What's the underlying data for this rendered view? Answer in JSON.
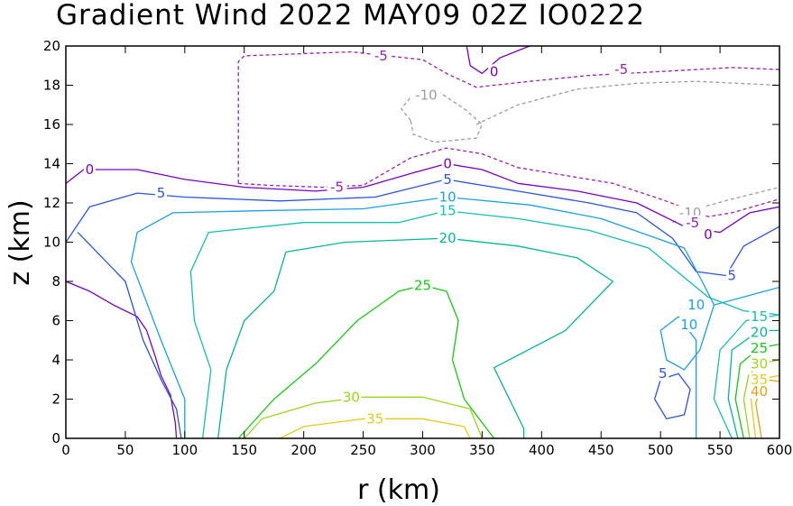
{
  "chart_data": {
    "type": "contour",
    "title": "Gradient Wind 2022 MAY09 02Z   IO0222",
    "xlabel": "r (km)",
    "ylabel": "z (km)",
    "xlim": [
      0,
      600
    ],
    "ylim": [
      0,
      20
    ],
    "x_ticks": [
      "0",
      "50",
      "100",
      "150",
      "200",
      "250",
      "300",
      "350",
      "400",
      "450",
      "500",
      "550",
      "600"
    ],
    "y_ticks": [
      "0",
      "2",
      "4",
      "6",
      "8",
      "10",
      "12",
      "14",
      "16",
      "18",
      "20"
    ],
    "grid": false,
    "contours": [
      {
        "level": -10,
        "label": "-10",
        "color": "#9e9e9e",
        "dashed": true,
        "segments": [
          [
            [
              290,
              16.2
            ],
            [
              282,
              16.8
            ],
            [
              290,
              17.4
            ],
            [
              315,
              17.6
            ],
            [
              335,
              16.8
            ],
            [
              350,
              16.0
            ],
            [
              345,
              15.3
            ],
            [
              310,
              15.1
            ],
            [
              292,
              15.5
            ],
            [
              290,
              16.2
            ]
          ],
          [
            [
              345,
              16.0
            ],
            [
              380,
              17.0
            ],
            [
              430,
              17.8
            ],
            [
              480,
              18.1
            ],
            [
              530,
              18.2
            ],
            [
              600,
              18.0
            ]
          ],
          [
            [
              510,
              11.0
            ],
            [
              530,
              11.7
            ],
            [
              560,
              12.2
            ],
            [
              600,
              12.8
            ]
          ]
        ],
        "labels": [
          {
            "text": "-10",
            "x": 303,
            "y": 17.5
          },
          {
            "text": "-10",
            "x": 525,
            "y": 11.5
          }
        ]
      },
      {
        "level": -5,
        "label": "-5",
        "color": "#9a1fb3",
        "dashed": true,
        "segments": [
          [
            [
              145,
              13.0
            ],
            [
              145,
              19.2
            ],
            [
              150,
              19.5
            ],
            [
              240,
              19.7
            ],
            [
              300,
              19.3
            ],
            [
              320,
              18.6
            ],
            [
              345,
              17.9
            ],
            [
              390,
              18.2
            ],
            [
              440,
              18.5
            ],
            [
              500,
              18.7
            ],
            [
              560,
              18.9
            ],
            [
              600,
              18.8
            ]
          ],
          [
            [
              145,
              13.0
            ],
            [
              170,
              12.9
            ],
            [
              215,
              12.8
            ],
            [
              250,
              12.9
            ],
            [
              270,
              13.6
            ],
            [
              290,
              14.3
            ],
            [
              320,
              14.8
            ],
            [
              350,
              14.5
            ],
            [
              380,
              13.8
            ],
            [
              420,
              13.4
            ],
            [
              460,
              13.0
            ],
            [
              500,
              12.2
            ],
            [
              540,
              11.3
            ],
            [
              560,
              11.5
            ],
            [
              600,
              12.2
            ]
          ]
        ],
        "labels": [
          {
            "text": "-5",
            "x": 265,
            "y": 19.5
          },
          {
            "text": "-5",
            "x": 467,
            "y": 18.8
          },
          {
            "text": "-5",
            "x": 228,
            "y": 12.8
          },
          {
            "text": "-5",
            "x": 527,
            "y": 11.0
          }
        ]
      },
      {
        "level": 0,
        "label": "0",
        "color": "#7a00c8",
        "dashed": false,
        "segments": [
          [
            [
              0,
              13.0
            ],
            [
              15,
              13.7
            ],
            [
              60,
              13.7
            ],
            [
              100,
              13.2
            ],
            [
              150,
              12.8
            ],
            [
              210,
              12.6
            ],
            [
              250,
              12.8
            ],
            [
              290,
              13.5
            ],
            [
              320,
              14.0
            ],
            [
              350,
              13.7
            ],
            [
              380,
              13.0
            ],
            [
              430,
              12.6
            ],
            [
              480,
              12.0
            ],
            [
              520,
              10.8
            ],
            [
              550,
              10.5
            ],
            [
              575,
              11.5
            ],
            [
              600,
              11.8
            ]
          ],
          [
            [
              337,
              20.0
            ],
            [
              340,
              19.0
            ],
            [
              350,
              18.6
            ],
            [
              365,
              19.4
            ],
            [
              390,
              20.0
            ]
          ],
          [
            [
              0,
              8.0
            ],
            [
              20,
              7.5
            ],
            [
              40,
              6.8
            ],
            [
              60,
              6.2
            ],
            [
              68,
              5.5
            ],
            [
              75,
              4.2
            ],
            [
              80,
              3.2
            ],
            [
              88,
              2.2
            ],
            [
              92,
              0.8
            ],
            [
              93,
              0.0
            ]
          ]
        ],
        "labels": [
          {
            "text": "0",
            "x": 20,
            "y": 13.7
          },
          {
            "text": "0",
            "x": 321,
            "y": 14.0
          },
          {
            "text": "0",
            "x": 360,
            "y": 18.7
          },
          {
            "text": "0",
            "x": 540,
            "y": 10.4
          }
        ]
      },
      {
        "level": 5,
        "label": "5",
        "color": "#2a55e0",
        "dashed": false,
        "segments": [
          [
            [
              0,
              10.0
            ],
            [
              20,
              11.8
            ],
            [
              60,
              12.5
            ],
            [
              100,
              12.3
            ],
            [
              180,
              12.1
            ],
            [
              260,
              12.3
            ],
            [
              320,
              13.2
            ],
            [
              380,
              12.6
            ],
            [
              440,
              12.0
            ],
            [
              480,
              11.5
            ],
            [
              510,
              10.2
            ],
            [
              530,
              8.5
            ],
            [
              555,
              8.3
            ],
            [
              570,
              9.8
            ],
            [
              600,
              10.8
            ]
          ],
          [
            [
              10,
              10.5
            ],
            [
              50,
              8.0
            ],
            [
              65,
              5.0
            ],
            [
              80,
              3.0
            ],
            [
              93,
              1.5
            ],
            [
              97,
              0.0
            ]
          ],
          [
            [
              495,
              2.0
            ],
            [
              500,
              3.0
            ],
            [
              515,
              3.3
            ],
            [
              525,
              2.5
            ],
            [
              520,
              1.2
            ],
            [
              505,
              1.0
            ],
            [
              495,
              2.0
            ]
          ]
        ],
        "labels": [
          {
            "text": "5",
            "x": 80,
            "y": 12.5
          },
          {
            "text": "5",
            "x": 321,
            "y": 13.2
          },
          {
            "text": "5",
            "x": 560,
            "y": 8.3
          },
          {
            "text": "5",
            "x": 502,
            "y": 3.3
          }
        ]
      },
      {
        "level": 10,
        "label": "10",
        "color": "#18a0e8",
        "dashed": false,
        "segments": [
          [
            [
              100,
              0.0
            ],
            [
              100,
              2.0
            ],
            [
              80,
              5.0
            ],
            [
              55,
              9.0
            ],
            [
              60,
              10.5
            ],
            [
              90,
              11.5
            ],
            [
              160,
              11.6
            ],
            [
              250,
              11.7
            ],
            [
              320,
              12.3
            ],
            [
              390,
              11.9
            ],
            [
              450,
              11.2
            ],
            [
              520,
              9.7
            ],
            [
              535,
              8.0
            ],
            [
              545,
              6.8
            ],
            [
              600,
              7.7
            ]
          ],
          [
            [
              530,
              0.0
            ],
            [
              530,
              5.0
            ],
            [
              515,
              6.2
            ],
            [
              500,
              5.5
            ],
            [
              505,
              4.0
            ],
            [
              520,
              3.5
            ],
            [
              533,
              4.5
            ],
            [
              545,
              6.8
            ]
          ]
        ],
        "labels": [
          {
            "text": "10",
            "x": 321,
            "y": 12.3
          },
          {
            "text": "10",
            "x": 530,
            "y": 6.8
          },
          {
            "text": "10",
            "x": 524,
            "y": 5.8
          }
        ]
      },
      {
        "level": 15,
        "label": "15",
        "color": "#10c0b0",
        "dashed": false,
        "segments": [
          [
            [
              115,
              0.0
            ],
            [
              122,
              3.5
            ],
            [
              108,
              6.0
            ],
            [
              105,
              8.5
            ],
            [
              120,
              10.5
            ],
            [
              200,
              11.0
            ],
            [
              280,
              11.0
            ],
            [
              320,
              11.6
            ],
            [
              380,
              11.2
            ],
            [
              440,
              10.6
            ],
            [
              490,
              9.7
            ],
            [
              520,
              8.2
            ],
            [
              540,
              7.2
            ],
            [
              570,
              6.5
            ],
            [
              600,
              6.3
            ]
          ],
          [
            [
              560,
              0.0
            ],
            [
              545,
              2.0
            ],
            [
              550,
              4.5
            ],
            [
              572,
              6.0
            ],
            [
              600,
              6.3
            ]
          ]
        ],
        "labels": [
          {
            "text": "15",
            "x": 321,
            "y": 11.6
          },
          {
            "text": "15",
            "x": 583,
            "y": 6.2
          }
        ]
      },
      {
        "level": 20,
        "label": "20",
        "color": "#00b898",
        "dashed": false,
        "segments": [
          [
            [
              128,
              0.0
            ],
            [
              135,
              3.5
            ],
            [
              150,
              6.0
            ],
            [
              175,
              7.5
            ],
            [
              185,
              9.5
            ],
            [
              235,
              10.0
            ],
            [
              320,
              10.2
            ],
            [
              380,
              9.8
            ],
            [
              430,
              9.2
            ],
            [
              460,
              8.0
            ],
            [
              420,
              5.5
            ],
            [
              360,
              3.6
            ],
            [
              385,
              0.5
            ],
            [
              385,
              0.0
            ]
          ],
          [
            [
              565,
              0.0
            ],
            [
              557,
              2.0
            ],
            [
              560,
              4.5
            ],
            [
              583,
              5.5
            ],
            [
              600,
              5.5
            ]
          ]
        ],
        "labels": [
          {
            "text": "20",
            "x": 321,
            "y": 10.2
          },
          {
            "text": "20",
            "x": 583,
            "y": 5.4
          }
        ]
      },
      {
        "level": 25,
        "label": "25",
        "color": "#10cc10",
        "dashed": false,
        "segments": [
          [
            [
              145,
              0.0
            ],
            [
              175,
              2.0
            ],
            [
              210,
              3.8
            ],
            [
              245,
              6.0
            ],
            [
              280,
              7.5
            ],
            [
              300,
              7.8
            ],
            [
              320,
              7.5
            ],
            [
              330,
              6.0
            ],
            [
              325,
              4.0
            ],
            [
              335,
              2.0
            ],
            [
              360,
              0.0
            ]
          ],
          [
            [
              570,
              0.0
            ],
            [
              563,
              2.0
            ],
            [
              567,
              3.8
            ],
            [
              583,
              4.6
            ],
            [
              600,
              4.8
            ]
          ]
        ],
        "labels": [
          {
            "text": "25",
            "x": 300,
            "y": 7.8
          },
          {
            "text": "25",
            "x": 583,
            "y": 4.6
          }
        ]
      },
      {
        "level": 30,
        "label": "30",
        "color": "#98d818",
        "dashed": false,
        "segments": [
          [
            [
              150,
              0.0
            ],
            [
              165,
              1.0
            ],
            [
              210,
              1.8
            ],
            [
              250,
              2.1
            ],
            [
              300,
              2.1
            ],
            [
              340,
              1.5
            ],
            [
              350,
              0.0
            ]
          ],
          [
            [
              575,
              0.0
            ],
            [
              570,
              2.0
            ],
            [
              574,
              3.2
            ],
            [
              583,
              3.8
            ],
            [
              600,
              4.0
            ]
          ]
        ],
        "labels": [
          {
            "text": "30",
            "x": 240,
            "y": 2.1
          },
          {
            "text": "30",
            "x": 583,
            "y": 3.8
          }
        ]
      },
      {
        "level": 35,
        "label": "35",
        "color": "#e8c818",
        "dashed": false,
        "segments": [
          [
            [
              180,
              0.0
            ],
            [
              200,
              0.6
            ],
            [
              250,
              1.0
            ],
            [
              300,
              1.0
            ],
            [
              335,
              0.6
            ],
            [
              340,
              0.0
            ]
          ],
          [
            [
              580,
              0.0
            ],
            [
              576,
              2.0
            ],
            [
              580,
              2.8
            ],
            [
              590,
              3.1
            ],
            [
              600,
              3.2
            ]
          ]
        ],
        "labels": [
          {
            "text": "35",
            "x": 260,
            "y": 1.0
          },
          {
            "text": "35",
            "x": 583,
            "y": 3.0
          }
        ]
      },
      {
        "level": 40,
        "label": "40",
        "color": "#e8a018",
        "dashed": false,
        "segments": [
          [
            [
              585,
              0.0
            ],
            [
              580,
              1.8
            ],
            [
              588,
              3.0
            ],
            [
              600,
              2.9
            ]
          ]
        ],
        "labels": [
          {
            "text": "40",
            "x": 583,
            "y": 2.4
          }
        ]
      }
    ]
  }
}
